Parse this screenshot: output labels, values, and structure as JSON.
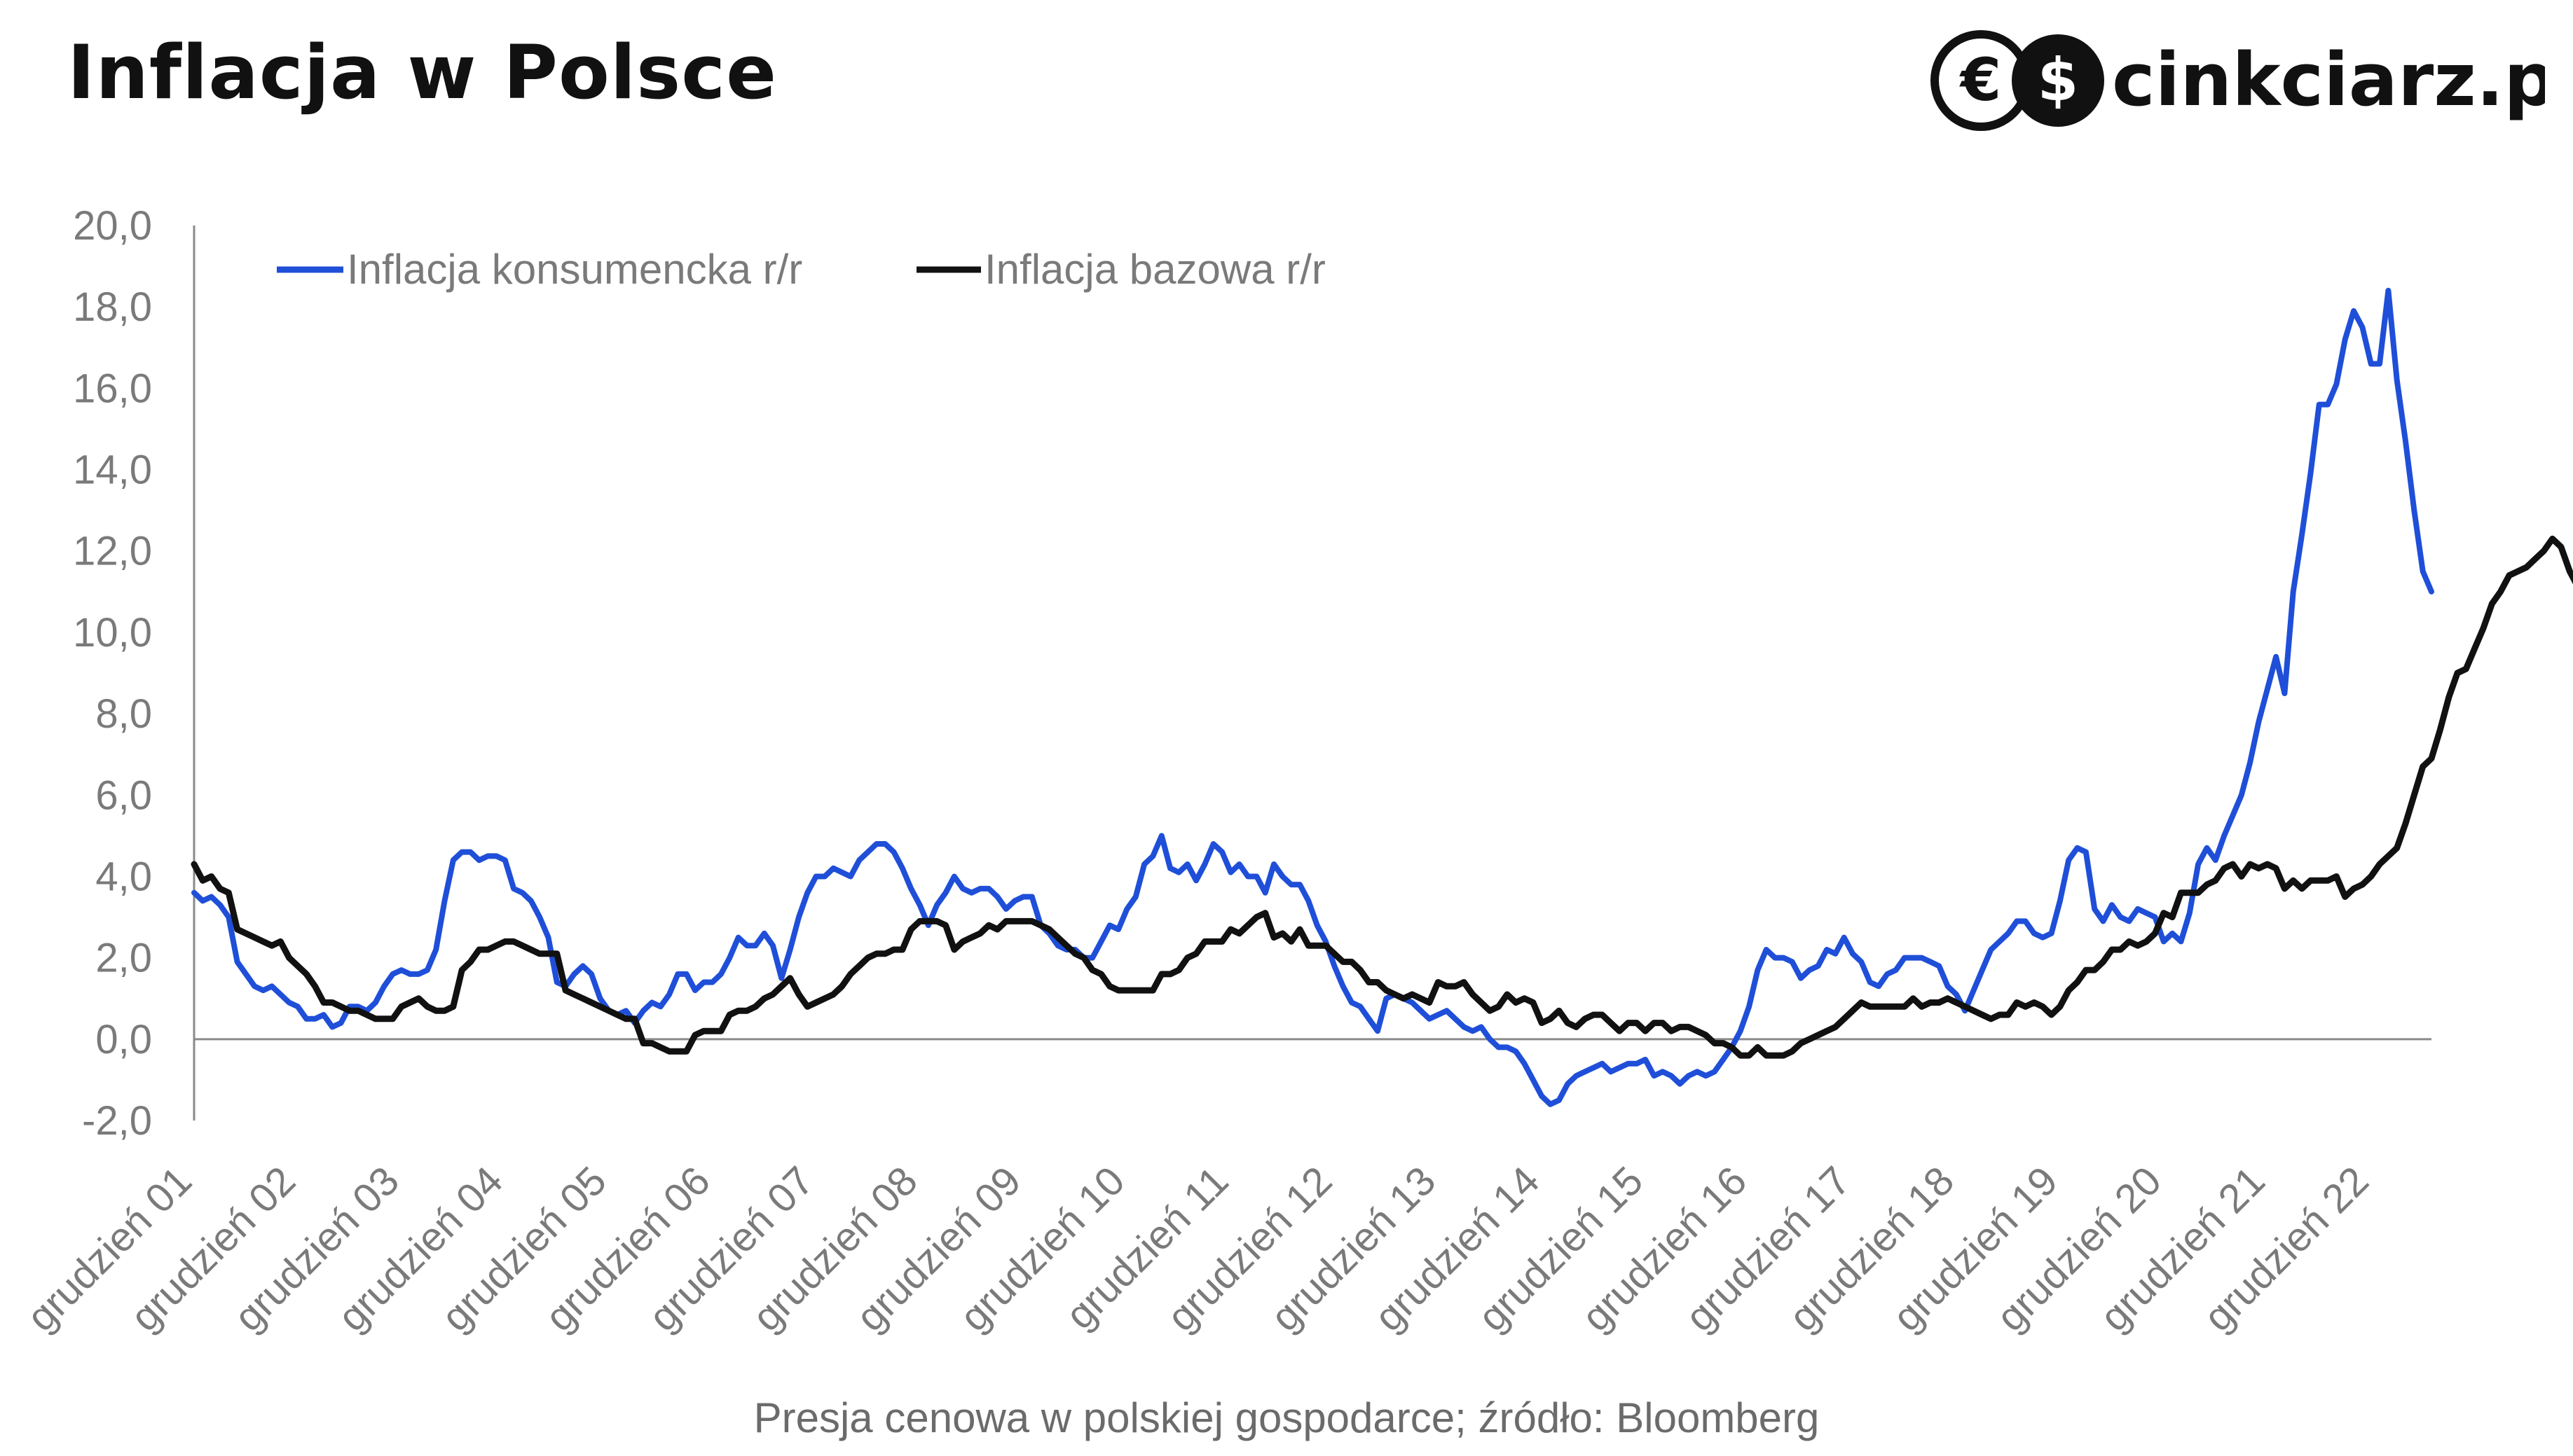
{
  "header": {
    "title": "Inflacja w Polsce"
  },
  "logo": {
    "text": "cinkciarz.pl",
    "icon_left": "euro-icon",
    "icon_right": "dollar-icon"
  },
  "footer": {
    "source": "Presja cenowa w polskiej gospodarce; źródło: Bloomberg"
  },
  "colors": {
    "cpi": "#1f4fd8",
    "core": "#111111",
    "axis": "#8a8a8a",
    "zero_line": "#8a8a8a"
  },
  "chart_data": {
    "type": "line",
    "title": "",
    "xlabel": "",
    "ylabel": "",
    "ylim": [
      -2.0,
      20.0
    ],
    "yticks": [
      "20,0",
      "18,0",
      "16,0",
      "14,0",
      "12,0",
      "10,0",
      "8,0",
      "6,0",
      "4,0",
      "2,0",
      "0,0",
      "-2,0"
    ],
    "ytick_values": [
      20,
      18,
      16,
      14,
      12,
      10,
      8,
      6,
      4,
      2,
      0,
      -2
    ],
    "x_start": "grudzień 01",
    "x_end": "kwiecień 23",
    "xtick_labels": [
      "grudzień 01",
      "grudzień 02",
      "grudzień 03",
      "grudzień 04",
      "grudzień 05",
      "grudzień 06",
      "grudzień 07",
      "grudzień 08",
      "grudzień 09",
      "grudzień 10",
      "grudzień 11",
      "grudzień 12",
      "grudzień 13",
      "grudzień 14",
      "grudzień 15",
      "grudzień 16",
      "grudzień 17",
      "grudzień 18",
      "grudzień 19",
      "grudzień 20",
      "grudzień 21",
      "grudzień 22"
    ],
    "legend_position": "top-left",
    "grid": false,
    "series": [
      {
        "name": "Inflacja konsumencka r/r",
        "values": [
          3.6,
          3.4,
          3.5,
          3.3,
          3.0,
          1.9,
          1.6,
          1.3,
          1.2,
          1.3,
          1.1,
          0.9,
          0.8,
          0.5,
          0.5,
          0.6,
          0.3,
          0.4,
          0.8,
          0.8,
          0.7,
          0.9,
          1.3,
          1.6,
          1.7,
          1.6,
          1.6,
          1.7,
          2.2,
          3.4,
          4.4,
          4.6,
          4.6,
          4.4,
          4.5,
          4.5,
          4.4,
          3.7,
          3.6,
          3.4,
          3.0,
          2.5,
          1.4,
          1.3,
          1.6,
          1.8,
          1.6,
          1.0,
          0.7,
          0.6,
          0.7,
          0.4,
          0.7,
          0.9,
          0.8,
          1.1,
          1.6,
          1.6,
          1.2,
          1.4,
          1.4,
          1.6,
          2.0,
          2.5,
          2.3,
          2.3,
          2.6,
          2.3,
          1.5,
          2.2,
          3.0,
          3.6,
          4.0,
          4.0,
          4.2,
          4.1,
          4.0,
          4.4,
          4.6,
          4.8,
          4.8,
          4.6,
          4.2,
          3.7,
          3.3,
          2.8,
          3.3,
          3.6,
          4.0,
          3.7,
          3.6,
          3.7,
          3.7,
          3.5,
          3.2,
          3.4,
          3.5,
          3.5,
          2.8,
          2.6,
          2.3,
          2.2,
          2.2,
          2.0,
          2.0,
          2.4,
          2.8,
          2.7,
          3.2,
          3.5,
          4.3,
          4.5,
          5.0,
          4.2,
          4.1,
          4.3,
          3.9,
          4.3,
          4.8,
          4.6,
          4.1,
          4.3,
          4.0,
          4.0,
          3.6,
          4.3,
          4.0,
          3.8,
          3.8,
          3.4,
          2.8,
          2.4,
          1.8,
          1.3,
          0.9,
          0.8,
          0.5,
          0.2,
          1.0,
          1.1,
          1.0,
          0.9,
          0.7,
          0.5,
          0.6,
          0.7,
          0.5,
          0.3,
          0.2,
          0.3,
          0.0,
          -0.2,
          -0.2,
          -0.3,
          -0.6,
          -1.0,
          -1.4,
          -1.6,
          -1.5,
          -1.1,
          -0.9,
          -0.8,
          -0.7,
          -0.6,
          -0.8,
          -0.7,
          -0.6,
          -0.6,
          -0.5,
          -0.9,
          -0.8,
          -0.9,
          -1.1,
          -0.9,
          -0.8,
          -0.9,
          -0.8,
          -0.5,
          -0.2,
          0.2,
          0.8,
          1.7,
          2.2,
          2.0,
          2.0,
          1.9,
          1.5,
          1.7,
          1.8,
          2.2,
          2.1,
          2.5,
          2.1,
          1.9,
          1.4,
          1.3,
          1.6,
          1.7,
          2.0,
          2.0,
          2.0,
          1.9,
          1.8,
          1.3,
          1.1,
          0.7,
          1.2,
          1.7,
          2.2,
          2.4,
          2.6,
          2.9,
          2.9,
          2.6,
          2.5,
          2.6,
          3.4,
          4.4,
          4.7,
          4.6,
          3.2,
          2.9,
          3.3,
          3.0,
          2.9,
          3.2,
          3.1,
          3.0,
          2.4,
          2.6,
          2.4,
          3.1,
          4.3,
          4.7,
          4.4,
          5.0,
          5.5,
          6.0,
          6.8,
          7.8,
          8.6,
          9.4,
          8.5,
          11.0,
          12.4,
          13.9,
          15.6,
          15.6,
          16.1,
          17.2,
          17.9,
          17.5,
          16.6,
          16.6,
          18.4,
          16.2,
          14.7,
          13.0,
          11.5,
          11.0
        ]
      },
      {
        "name": "Inflacja bazowa r/r",
        "values": [
          4.3,
          3.9,
          4.0,
          3.7,
          3.6,
          2.7,
          2.6,
          2.5,
          2.4,
          2.3,
          2.4,
          2.0,
          1.8,
          1.6,
          1.3,
          0.9,
          0.9,
          0.8,
          0.7,
          0.7,
          0.6,
          0.5,
          0.5,
          0.5,
          0.8,
          0.9,
          1.0,
          0.8,
          0.7,
          0.7,
          0.8,
          1.7,
          1.9,
          2.2,
          2.2,
          2.3,
          2.4,
          2.4,
          2.3,
          2.2,
          2.1,
          2.1,
          2.1,
          1.2,
          1.1,
          1.0,
          0.9,
          0.8,
          0.7,
          0.6,
          0.5,
          0.5,
          -0.1,
          -0.1,
          -0.2,
          -0.3,
          -0.3,
          -0.3,
          0.1,
          0.2,
          0.2,
          0.2,
          0.6,
          0.7,
          0.7,
          0.8,
          1.0,
          1.1,
          1.3,
          1.5,
          1.1,
          0.8,
          0.9,
          1.0,
          1.1,
          1.3,
          1.6,
          1.8,
          2.0,
          2.1,
          2.1,
          2.2,
          2.2,
          2.7,
          2.9,
          2.9,
          2.9,
          2.8,
          2.2,
          2.4,
          2.5,
          2.6,
          2.8,
          2.7,
          2.9,
          2.9,
          2.9,
          2.9,
          2.8,
          2.7,
          2.5,
          2.3,
          2.1,
          2.0,
          1.7,
          1.6,
          1.3,
          1.2,
          1.2,
          1.2,
          1.2,
          1.2,
          1.6,
          1.6,
          1.7,
          2.0,
          2.1,
          2.4,
          2.4,
          2.4,
          2.7,
          2.6,
          2.8,
          3.0,
          3.1,
          2.5,
          2.6,
          2.4,
          2.7,
          2.3,
          2.3,
          2.3,
          2.1,
          1.9,
          1.9,
          1.7,
          1.4,
          1.4,
          1.2,
          1.1,
          1.0,
          1.1,
          1.0,
          0.9,
          1.4,
          1.3,
          1.3,
          1.4,
          1.1,
          0.9,
          0.7,
          0.8,
          1.1,
          0.9,
          1.0,
          0.9,
          0.4,
          0.5,
          0.7,
          0.4,
          0.3,
          0.5,
          0.6,
          0.6,
          0.4,
          0.2,
          0.4,
          0.4,
          0.2,
          0.4,
          0.4,
          0.2,
          0.3,
          0.3,
          0.2,
          0.1,
          -0.1,
          -0.1,
          -0.2,
          -0.4,
          -0.4,
          -0.2,
          -0.4,
          -0.4,
          -0.4,
          -0.3,
          -0.1,
          0.0,
          0.1,
          0.2,
          0.3,
          0.5,
          0.7,
          0.9,
          0.8,
          0.8,
          0.8,
          0.8,
          0.8,
          1.0,
          0.8,
          0.9,
          0.9,
          1.0,
          0.9,
          0.8,
          0.7,
          0.6,
          0.5,
          0.6,
          0.6,
          0.9,
          0.8,
          0.9,
          0.8,
          0.6,
          0.8,
          1.2,
          1.4,
          1.7,
          1.7,
          1.9,
          2.2,
          2.2,
          2.4,
          2.3,
          2.4,
          2.6,
          3.1,
          3.0,
          3.6,
          3.6,
          3.6,
          3.8,
          3.9,
          4.2,
          4.3,
          4.0,
          4.3,
          4.2,
          4.3,
          4.2,
          3.7,
          3.9,
          3.7,
          3.9,
          3.9,
          3.9,
          4.0,
          3.5,
          3.7,
          3.8,
          4.0,
          4.3,
          4.5,
          4.7,
          5.3,
          6.0,
          6.7,
          6.9,
          7.6,
          8.4,
          9.0,
          9.1,
          9.6,
          10.1,
          10.7,
          11.0,
          11.4,
          11.5,
          11.6,
          11.8,
          12.0,
          12.3,
          12.1,
          11.5,
          11.1,
          10.6
        ]
      }
    ]
  }
}
